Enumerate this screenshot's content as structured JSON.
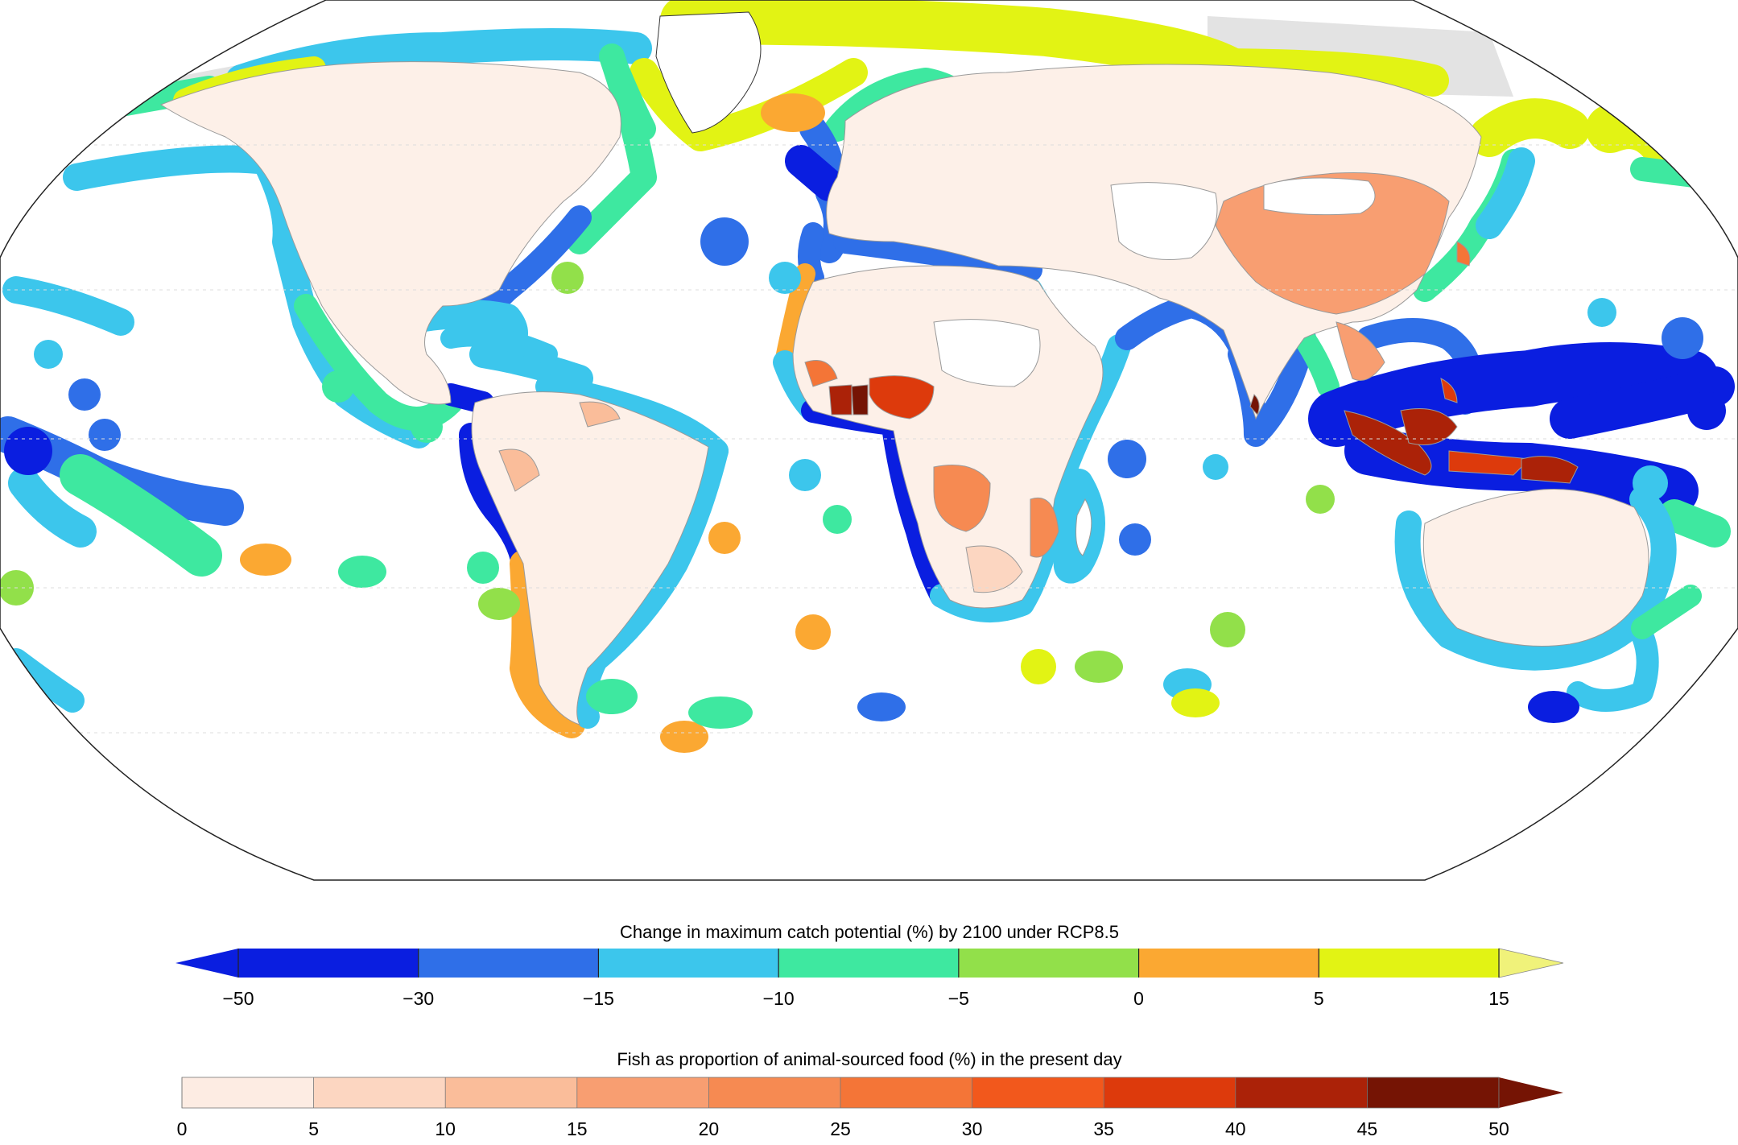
{
  "legend_catch": {
    "title": "Change in maximum catch potential (%) by 2100 under RCP8.5",
    "bins": [
      {
        "color": "#0a1ee0"
      },
      {
        "color": "#2f6fe8"
      },
      {
        "color": "#3cc6ec"
      },
      {
        "color": "#3ee8a0"
      },
      {
        "color": "#92e04a"
      },
      {
        "color": "#fba832"
      },
      {
        "color": "#e2f314"
      }
    ],
    "ticks": [
      "−50",
      "−30",
      "−15",
      "−10",
      "−5",
      "0",
      "5",
      "15"
    ],
    "over_color": "#f0f27a",
    "under_color": "#0a1ee0"
  },
  "legend_fish": {
    "title": "Fish as proportion of animal-sourced food (%) in the present day",
    "bins": [
      {
        "color": "#fdece3"
      },
      {
        "color": "#fcd6c1"
      },
      {
        "color": "#fabd9a"
      },
      {
        "color": "#f89e71"
      },
      {
        "color": "#f68a52"
      },
      {
        "color": "#f47537"
      },
      {
        "color": "#f2581c"
      },
      {
        "color": "#dd3a0c"
      },
      {
        "color": "#ab2208"
      },
      {
        "color": "#751404"
      }
    ],
    "ticks": [
      "0",
      "5",
      "10",
      "15",
      "20",
      "25",
      "30",
      "35",
      "40",
      "45",
      "50"
    ],
    "over_color": "#751404"
  },
  "map_colors": {
    "land_default": "#fdf0e8",
    "land_nodata": "#ffffff",
    "ice": "#e3e3e3",
    "ocean": "#ffffff",
    "outline": "#222222"
  }
}
